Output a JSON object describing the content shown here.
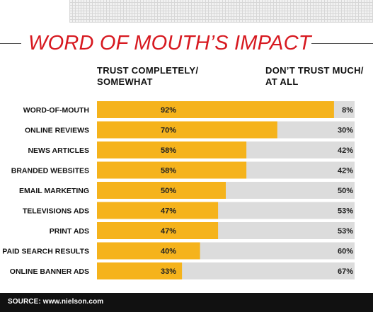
{
  "title": "WORD OF MOUTH’S IMPACT",
  "headers": {
    "left": [
      "TRUST COMPLETELY/",
      "SOMEWHAT"
    ],
    "right": [
      "DON’T TRUST MUCH/",
      "AT ALL"
    ]
  },
  "source": "SOURCE: www.nielson.com",
  "colors": {
    "trust": "#f5b31c",
    "distrust": "#dcdcdc",
    "title": "#d71920",
    "footer": "#111111"
  },
  "chart_data": {
    "type": "bar",
    "stacked": true,
    "orientation": "horizontal",
    "categories": [
      "WORD-OF-MOUTH",
      "ONLINE REVIEWS",
      "NEWS ARTICLES",
      "BRANDED WEBSITES",
      "EMAIL MARKETING",
      "TELEVISIONS ADS",
      "PRINT ADS",
      "PAID SEARCH RESULTS",
      "ONLINE BANNER ADS"
    ],
    "series": [
      {
        "name": "TRUST COMPLETELY/ SOMEWHAT",
        "values": [
          92,
          70,
          58,
          58,
          50,
          47,
          47,
          40,
          33
        ],
        "labels": [
          "92%",
          "70%",
          "58%",
          "58%",
          "50%",
          "47%",
          "47%",
          "40%",
          "33%"
        ]
      },
      {
        "name": "DON’T TRUST MUCH/ AT ALL",
        "values": [
          8,
          30,
          42,
          42,
          50,
          53,
          53,
          60,
          67
        ],
        "labels": [
          "8%",
          "30%",
          "42%",
          "42%",
          "50%",
          "53%",
          "53%",
          "60%",
          "67%"
        ]
      }
    ],
    "xlim": [
      0,
      100
    ]
  }
}
